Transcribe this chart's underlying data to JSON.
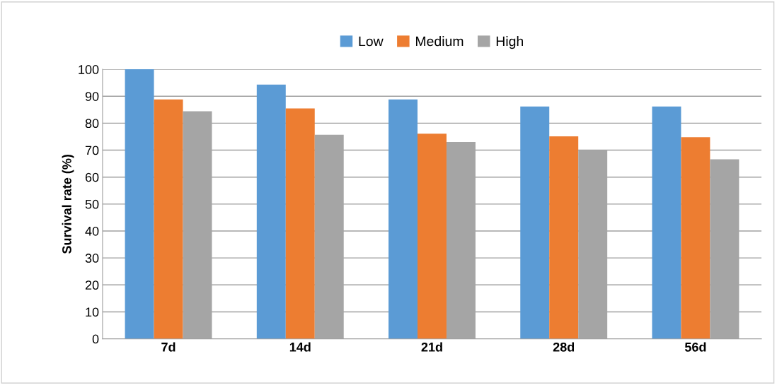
{
  "chart_data": {
    "type": "bar",
    "ylabel": "Survival rate (%)",
    "categories": [
      "7d",
      "14d",
      "21d",
      "28d",
      "56d"
    ],
    "series": [
      {
        "name": "Low",
        "color": "#5b9bd5",
        "values": [
          100,
          94.3,
          88.8,
          86.2,
          86.2
        ]
      },
      {
        "name": "Medium",
        "color": "#ed7d31",
        "values": [
          88.8,
          85.5,
          76.1,
          75.1,
          74.8
        ]
      },
      {
        "name": "High",
        "color": "#a5a5a5",
        "values": [
          84.4,
          75.7,
          73.0,
          70.0,
          66.6
        ]
      }
    ],
    "ylim": [
      0,
      100
    ],
    "yticks": [
      0,
      10,
      20,
      30,
      40,
      50,
      60,
      70,
      80,
      90,
      100
    ],
    "grid": "y",
    "legend": "top"
  }
}
